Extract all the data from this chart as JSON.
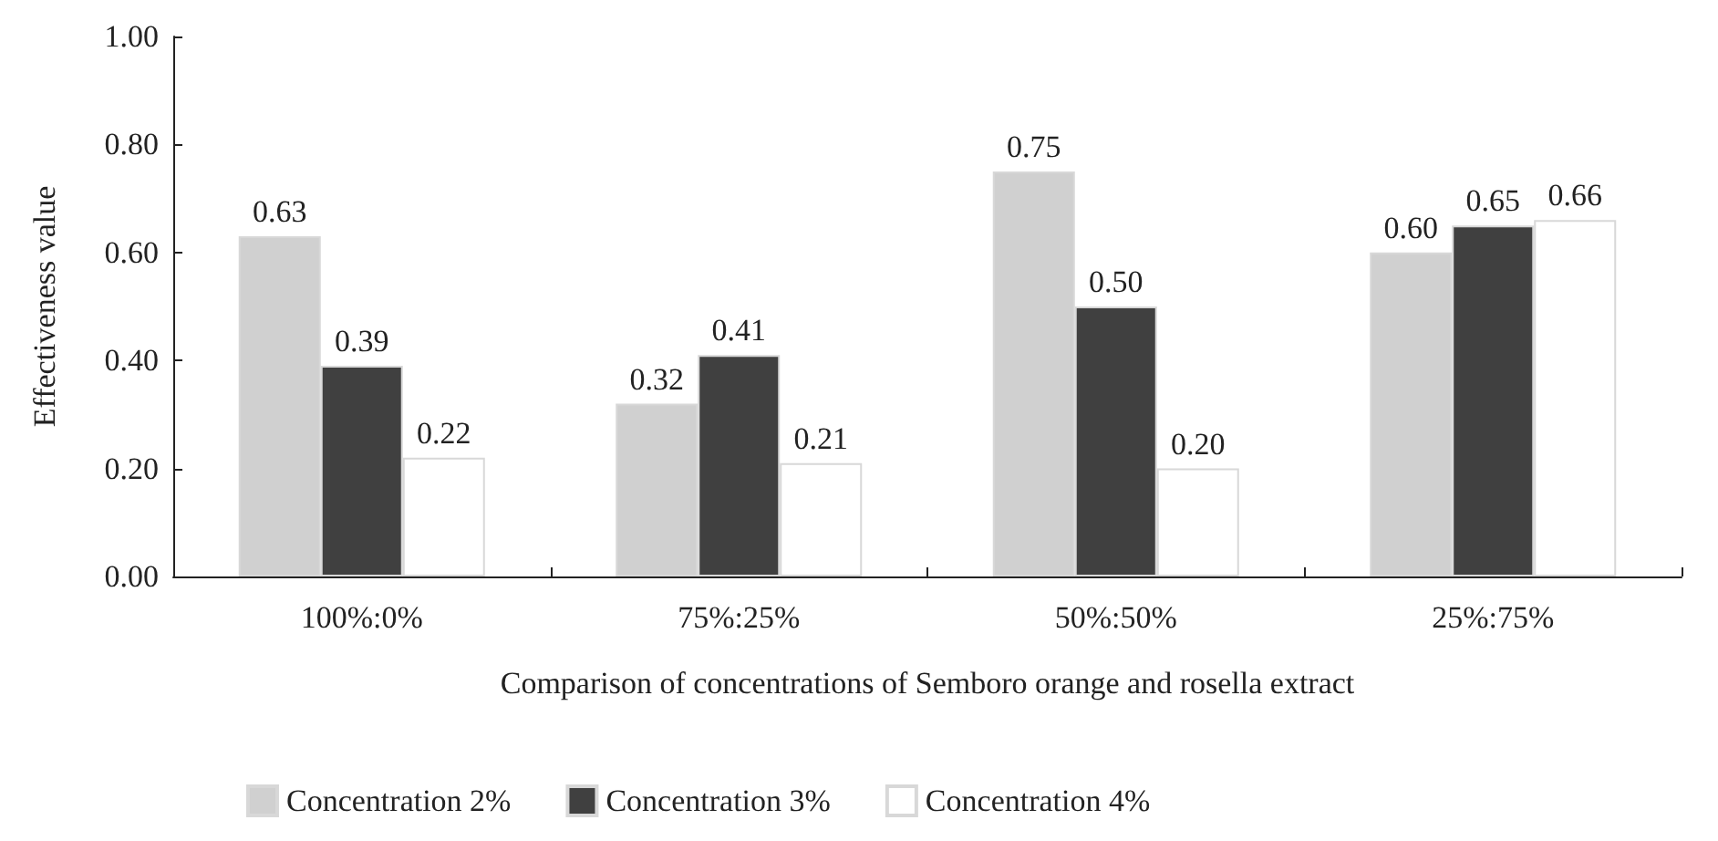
{
  "chart_data": {
    "type": "bar",
    "xlabel": "Comparison of concentrations of Semboro orange and rosella extract",
    "ylabel": "Effectiveness value",
    "categories": [
      "100%:0%",
      "75%:25%",
      "50%:50%",
      "25%:75%"
    ],
    "series": [
      {
        "name": "Concentration 2%",
        "color": "#d0d0d0",
        "values": [
          0.63,
          0.32,
          0.75,
          0.6
        ],
        "value_labels": [
          "0.63",
          "0.32",
          "0.75",
          "0.60"
        ]
      },
      {
        "name": "Concentration 3%",
        "color": "#404040",
        "values": [
          0.39,
          0.41,
          0.5,
          0.65
        ],
        "value_labels": [
          "0.39",
          "0.41",
          "0.50",
          "0.65"
        ]
      },
      {
        "name": "Concentration 4%",
        "color": "#ffffff",
        "values": [
          0.22,
          0.21,
          0.2,
          0.66
        ],
        "value_labels": [
          "0.22",
          "0.21",
          "0.20",
          "0.66"
        ]
      }
    ],
    "ylim": [
      0,
      1
    ],
    "yticks": [
      {
        "value": 0,
        "label": "0.00"
      },
      {
        "value": 0.2,
        "label": "0.20"
      },
      {
        "value": 0.4,
        "label": "0.40"
      },
      {
        "value": 0.6,
        "label": "0.60"
      },
      {
        "value": 0.8,
        "label": "0.80"
      },
      {
        "value": 1,
        "label": "1.00"
      }
    ],
    "grid": false,
    "legend": "bottom"
  }
}
